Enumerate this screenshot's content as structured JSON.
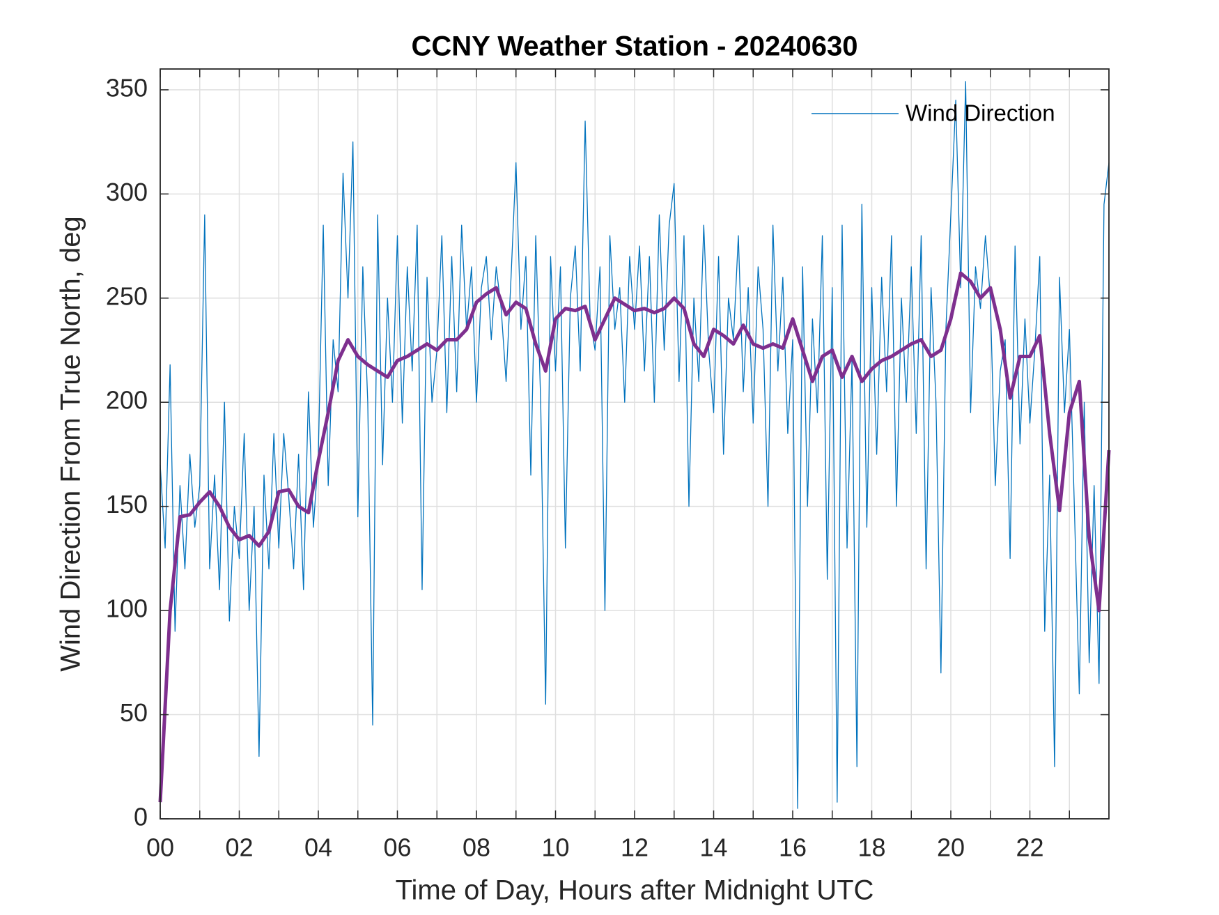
{
  "chart_data": {
    "type": "line",
    "title": "CCNY Weather Station - 20240630",
    "xlabel": "Time of Day, Hours after Midnight UTC",
    "ylabel": "Wind Direction From True North, deg",
    "xlim": [
      0,
      24
    ],
    "ylim": [
      0,
      360
    ],
    "xticks": [
      {
        "value": 0,
        "label": "00"
      },
      {
        "value": 2,
        "label": "02"
      },
      {
        "value": 4,
        "label": "04"
      },
      {
        "value": 6,
        "label": "06"
      },
      {
        "value": 8,
        "label": "08"
      },
      10,
      12,
      14,
      16,
      18,
      20,
      22
    ],
    "xminorticks": [
      1,
      3,
      5,
      7,
      9,
      11,
      13,
      15,
      17,
      19,
      21,
      23
    ],
    "yticks": [
      0,
      50,
      100,
      150,
      200,
      250,
      300,
      350
    ],
    "grid": true,
    "legend": "upper right",
    "series": [
      {
        "name": "Wind Direction",
        "color": "#0072bd",
        "width": 1.3,
        "x": [
          0,
          0.125,
          0.25,
          0.375,
          0.5,
          0.625,
          0.75,
          0.875,
          1,
          1.125,
          1.25,
          1.375,
          1.5,
          1.625,
          1.75,
          1.875,
          2,
          2.125,
          2.25,
          2.375,
          2.5,
          2.625,
          2.75,
          2.875,
          3,
          3.125,
          3.25,
          3.375,
          3.5,
          3.625,
          3.75,
          3.875,
          4,
          4.125,
          4.25,
          4.375,
          4.5,
          4.625,
          4.75,
          4.875,
          5,
          5.125,
          5.25,
          5.375,
          5.5,
          5.625,
          5.75,
          5.875,
          6,
          6.125,
          6.25,
          6.375,
          6.5,
          6.625,
          6.75,
          6.875,
          7,
          7.125,
          7.25,
          7.375,
          7.5,
          7.625,
          7.75,
          7.875,
          8,
          8.125,
          8.25,
          8.375,
          8.5,
          8.625,
          8.75,
          8.875,
          9,
          9.125,
          9.25,
          9.375,
          9.5,
          9.625,
          9.75,
          9.875,
          10,
          10.125,
          10.25,
          10.375,
          10.5,
          10.625,
          10.75,
          10.875,
          11,
          11.125,
          11.25,
          11.375,
          11.5,
          11.625,
          11.75,
          11.875,
          12,
          12.125,
          12.25,
          12.375,
          12.5,
          12.625,
          12.75,
          12.875,
          13,
          13.125,
          13.25,
          13.375,
          13.5,
          13.625,
          13.75,
          13.875,
          14,
          14.125,
          14.25,
          14.375,
          14.5,
          14.625,
          14.75,
          14.875,
          15,
          15.125,
          15.25,
          15.375,
          15.5,
          15.625,
          15.75,
          15.875,
          16,
          16.125,
          16.25,
          16.375,
          16.5,
          16.625,
          16.75,
          16.875,
          17,
          17.125,
          17.25,
          17.375,
          17.5,
          17.625,
          17.75,
          17.875,
          18,
          18.125,
          18.25,
          18.375,
          18.5,
          18.625,
          18.75,
          18.875,
          19,
          19.125,
          19.25,
          19.375,
          19.5,
          19.625,
          19.75,
          19.875,
          20,
          20.125,
          20.25,
          20.375,
          20.5,
          20.625,
          20.75,
          20.875,
          21,
          21.125,
          21.25,
          21.375,
          21.5,
          21.625,
          21.75,
          21.875,
          22,
          22.125,
          22.25,
          22.375,
          22.5,
          22.625,
          22.75,
          22.875,
          23,
          23.125,
          23.25,
          23.375,
          23.5,
          23.625,
          23.75,
          23.875,
          24
        ],
        "values": [
          170,
          130,
          218,
          90,
          160,
          120,
          175,
          140,
          160,
          290,
          120,
          165,
          110,
          200,
          95,
          150,
          125,
          185,
          100,
          150,
          30,
          165,
          120,
          185,
          130,
          185,
          155,
          120,
          175,
          110,
          205,
          140,
          175,
          285,
          160,
          230,
          205,
          310,
          250,
          325,
          145,
          265,
          200,
          45,
          290,
          170,
          250,
          200,
          280,
          190,
          265,
          215,
          285,
          110,
          260,
          200,
          225,
          280,
          195,
          270,
          205,
          285,
          235,
          265,
          200,
          255,
          270,
          230,
          265,
          245,
          210,
          260,
          315,
          235,
          270,
          165,
          280,
          200,
          55,
          270,
          215,
          265,
          130,
          250,
          275,
          215,
          335,
          240,
          225,
          265,
          100,
          280,
          235,
          255,
          200,
          270,
          235,
          275,
          215,
          270,
          200,
          290,
          225,
          285,
          305,
          210,
          280,
          150,
          250,
          210,
          285,
          225,
          195,
          270,
          175,
          250,
          230,
          280,
          205,
          255,
          190,
          265,
          235,
          150,
          285,
          215,
          260,
          185,
          230,
          5,
          265,
          150,
          240,
          195,
          280,
          115,
          255,
          8,
          285,
          130,
          220,
          25,
          295,
          140,
          255,
          175,
          260,
          205,
          280,
          150,
          250,
          200,
          265,
          185,
          280,
          120,
          255,
          200,
          70,
          235,
          290,
          345,
          255,
          354,
          195,
          265,
          245,
          280,
          250,
          160,
          215,
          230,
          125,
          275,
          180,
          240,
          190,
          225,
          270,
          90,
          165,
          25,
          260,
          195,
          235,
          150,
          60,
          200,
          75,
          160,
          65,
          295,
          315
        ]
      },
      {
        "color": "#7e2f8e",
        "width": 5,
        "x": [
          0,
          0.25,
          0.5,
          0.75,
          1,
          1.25,
          1.5,
          1.75,
          2,
          2.25,
          2.5,
          2.75,
          3,
          3.25,
          3.5,
          3.75,
          4,
          4.25,
          4.5,
          4.75,
          5,
          5.25,
          5.5,
          5.75,
          6,
          6.25,
          6.5,
          6.75,
          7,
          7.25,
          7.5,
          7.75,
          8,
          8.25,
          8.5,
          8.75,
          9,
          9.25,
          9.5,
          9.75,
          10,
          10.25,
          10.5,
          10.75,
          11,
          11.25,
          11.5,
          11.75,
          12,
          12.25,
          12.5,
          12.75,
          13,
          13.25,
          13.5,
          13.75,
          14,
          14.25,
          14.5,
          14.75,
          15,
          15.25,
          15.5,
          15.75,
          16,
          16.25,
          16.5,
          16.75,
          17,
          17.25,
          17.5,
          17.75,
          18,
          18.25,
          18.5,
          18.75,
          19,
          19.25,
          19.5,
          19.75,
          20,
          20.25,
          20.5,
          20.75,
          21,
          21.25,
          21.5,
          21.75,
          22,
          22.25,
          22.5,
          22.75,
          23,
          23.25,
          23.5,
          23.75,
          24
        ],
        "values": [
          8,
          100,
          145,
          146,
          152,
          157,
          150,
          140,
          134,
          136,
          131,
          138,
          157,
          158,
          150,
          147,
          172,
          195,
          220,
          230,
          222,
          218,
          215,
          212,
          220,
          222,
          225,
          228,
          225,
          230,
          230,
          235,
          248,
          252,
          255,
          242,
          248,
          245,
          228,
          215,
          240,
          245,
          244,
          246,
          230,
          240,
          250,
          247,
          244,
          245,
          243,
          245,
          250,
          245,
          228,
          222,
          235,
          232,
          228,
          237,
          228,
          226,
          228,
          226,
          240,
          225,
          210,
          222,
          225,
          212,
          222,
          210,
          216,
          220,
          222,
          225,
          228,
          230,
          222,
          225,
          240,
          262,
          258,
          250,
          255,
          235,
          202,
          222,
          222,
          232,
          185,
          148,
          195,
          210,
          135,
          100,
          177
        ]
      }
    ]
  }
}
